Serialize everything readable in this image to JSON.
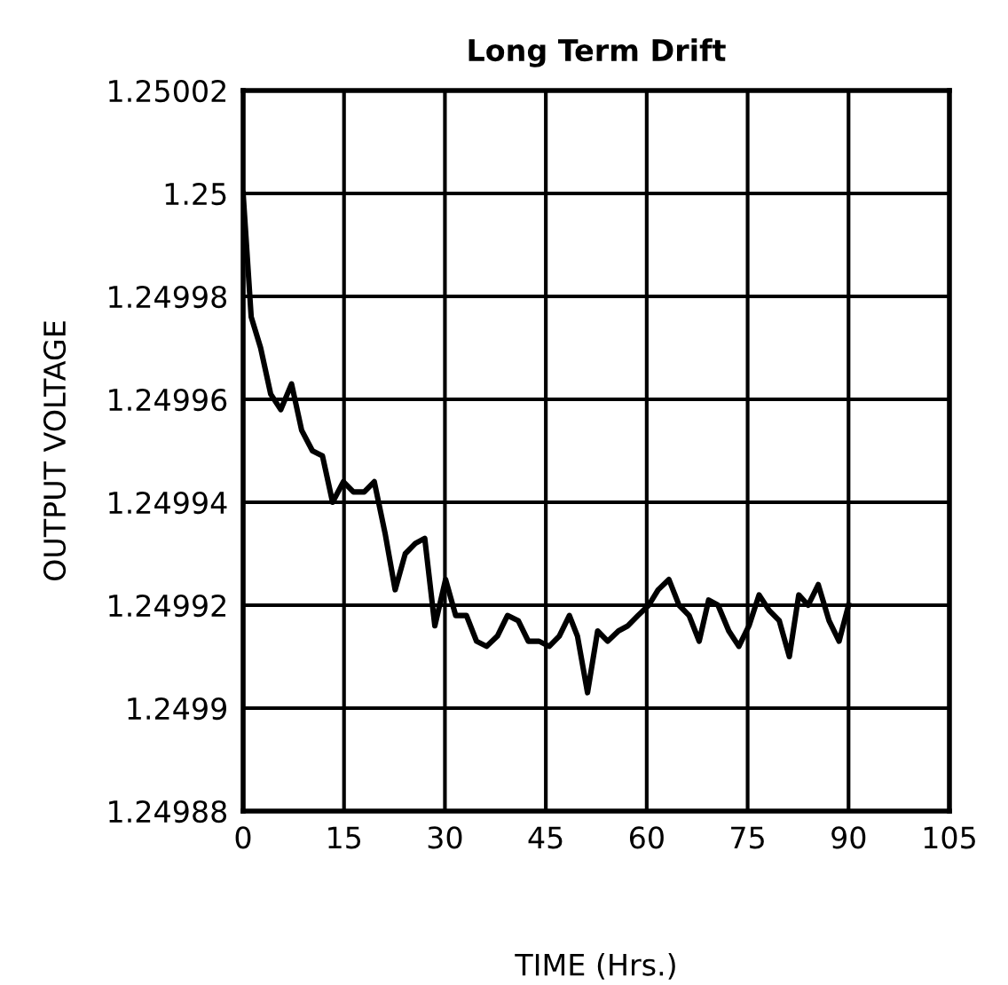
{
  "chart_data": {
    "type": "line",
    "title": "Long Term Drift",
    "xlabel": "TIME (Hrs.)",
    "ylabel": "OUTPUT VOLTAGE",
    "x": [
      0,
      1.2,
      2.6,
      4.1,
      5.6,
      7.2,
      8.7,
      10.3,
      11.8,
      13.3,
      14.9,
      16.4,
      18.0,
      19.5,
      21.1,
      22.6,
      24.1,
      25.6,
      27.0,
      28.5,
      30.1,
      31.6,
      33.2,
      34.7,
      36.2,
      37.8,
      39.3,
      40.9,
      42.4,
      44.0,
      45.5,
      47.0,
      48.5,
      49.7,
      51.2,
      52.7,
      54.2,
      55.8,
      57.2,
      58.7,
      60.3,
      61.7,
      63.3,
      64.8,
      66.3,
      67.8,
      69.2,
      70.6,
      72.2,
      73.7,
      75.2,
      76.7,
      78.2,
      79.7,
      81.2,
      82.6,
      84.0,
      85.5,
      87.1,
      88.6,
      90
    ],
    "series": [
      {
        "color": "#000000",
        "values": [
          1.25,
          1.249976,
          1.24997,
          1.249961,
          1.249958,
          1.249963,
          1.249954,
          1.24995,
          1.249949,
          1.24994,
          1.249944,
          1.249942,
          1.249942,
          1.249944,
          1.249934,
          1.249923,
          1.24993,
          1.249932,
          1.249933,
          1.249916,
          1.249925,
          1.249918,
          1.249918,
          1.249913,
          1.249912,
          1.249914,
          1.249918,
          1.249917,
          1.249913,
          1.249913,
          1.249912,
          1.249914,
          1.249918,
          1.249914,
          1.249903,
          1.249915,
          1.249913,
          1.249915,
          1.249916,
          1.249918,
          1.24992,
          1.249923,
          1.249925,
          1.24992,
          1.249918,
          1.249913,
          1.249921,
          1.24992,
          1.249915,
          1.249912,
          1.249916,
          1.249922,
          1.249919,
          1.249917,
          1.24991,
          1.249922,
          1.24992,
          1.249924,
          1.249917,
          1.249913,
          1.24992
        ]
      }
    ],
    "xlim": [
      0,
      105
    ],
    "xticks": [
      0,
      15,
      30,
      45,
      60,
      75,
      90,
      105
    ],
    "ylim": [
      1.24988,
      1.25002
    ],
    "yticks": [
      1.24988,
      1.2499,
      1.24992,
      1.24994,
      1.24996,
      1.24998,
      1.25,
      1.25002
    ],
    "grid": true,
    "marker": "none",
    "line_style": "solid"
  }
}
